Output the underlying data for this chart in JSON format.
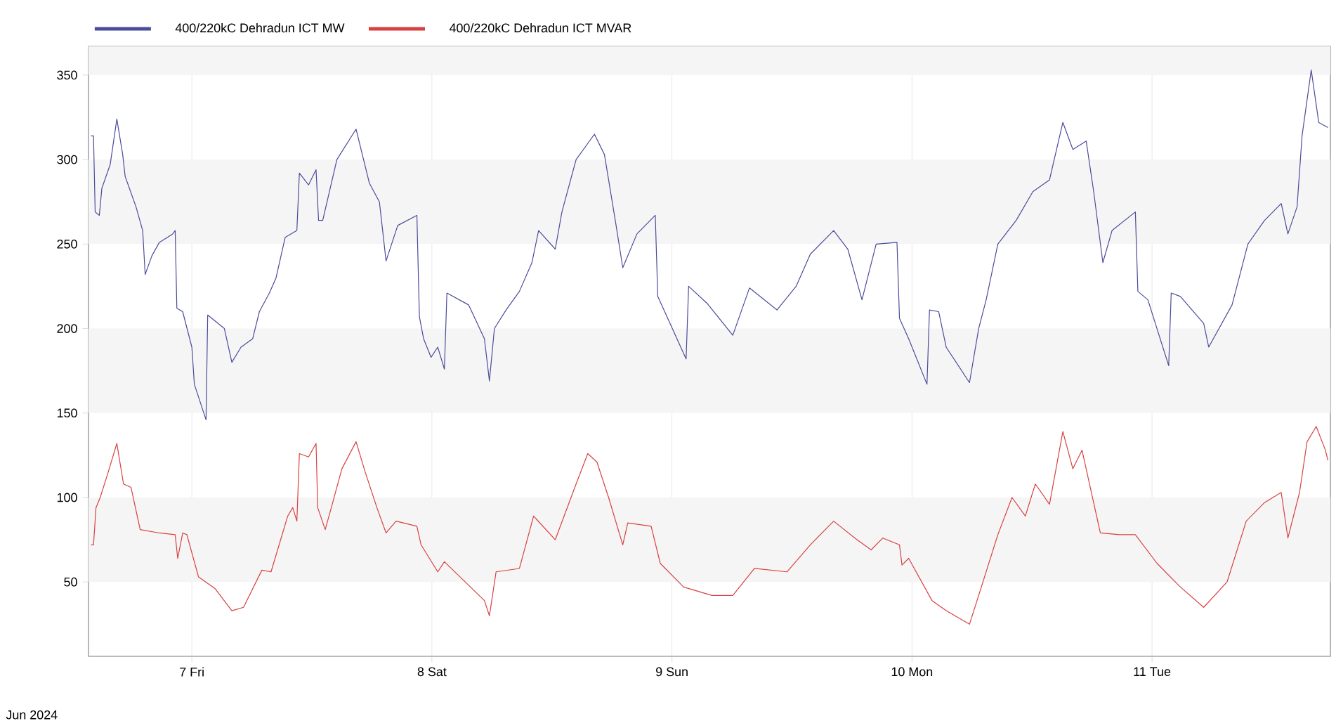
{
  "chart_data": {
    "type": "line",
    "xlim": [
      "2024-06-06T13:40",
      "2024-06-11T17:50"
    ],
    "xticks": [
      {
        "value": "2024-06-07",
        "label": "7 Fri"
      },
      {
        "value": "2024-06-08",
        "label": "8 Sat"
      },
      {
        "value": "2024-06-09",
        "label": "9 Sun"
      },
      {
        "value": "2024-06-10",
        "label": "10 Mon"
      },
      {
        "value": "2024-06-11",
        "label": "11 Tue"
      }
    ],
    "ylim": [
      6,
      367
    ],
    "yticks": [
      50,
      100,
      150,
      200,
      250,
      300,
      350
    ],
    "grid": true,
    "legend": "top",
    "marker": "none",
    "line_style": "solid",
    "annotations": [
      "Jun 2024"
    ],
    "series": [
      {
        "name": "400/220kC Dehradun ICT MW",
        "color": "#4b4b9b",
        "x": [
          "2024-06-06T13:55",
          "2024-06-06T14:10",
          "2024-06-06T14:20",
          "2024-06-06T14:45",
          "2024-06-06T15:00",
          "2024-06-06T15:50",
          "2024-06-06T16:30",
          "2024-06-06T17:05",
          "2024-06-06T17:20",
          "2024-06-06T18:25",
          "2024-06-06T19:05",
          "2024-06-06T19:20",
          "2024-06-06T20:00",
          "2024-06-06T20:45",
          "2024-06-06T22:05",
          "2024-06-06T22:20",
          "2024-06-06T22:30",
          "2024-06-06T23:05",
          "2024-06-07T00:00",
          "2024-06-07T00:15",
          "2024-06-07T01:25",
          "2024-06-07T01:35",
          "2024-06-07T03:15",
          "2024-06-07T04:00",
          "2024-06-07T04:55",
          "2024-06-07T06:05",
          "2024-06-07T06:45",
          "2024-06-07T07:45",
          "2024-06-07T08:25",
          "2024-06-07T09:20",
          "2024-06-07T10:30",
          "2024-06-07T10:45",
          "2024-06-07T11:40",
          "2024-06-07T12:25",
          "2024-06-07T12:40",
          "2024-06-07T13:05",
          "2024-06-07T14:30",
          "2024-06-07T16:25",
          "2024-06-07T17:45",
          "2024-06-07T18:45",
          "2024-06-07T19:25",
          "2024-06-07T20:35",
          "2024-06-07T22:30",
          "2024-06-07T22:45",
          "2024-06-07T23:10",
          "2024-06-07T23:55",
          "2024-06-08T00:35",
          "2024-06-08T01:15",
          "2024-06-08T01:30",
          "2024-06-08T03:40",
          "2024-06-08T05:15",
          "2024-06-08T05:45",
          "2024-06-08T06:15",
          "2024-06-08T07:25",
          "2024-06-08T08:45",
          "2024-06-08T10:00",
          "2024-06-08T10:40",
          "2024-06-08T12:20",
          "2024-06-08T13:00",
          "2024-06-08T14:25",
          "2024-06-08T16:15",
          "2024-06-08T17:15",
          "2024-06-08T18:25",
          "2024-06-08T19:05",
          "2024-06-08T20:30",
          "2024-06-08T22:20",
          "2024-06-08T22:35",
          "2024-06-09T01:25",
          "2024-06-09T01:40",
          "2024-06-09T03:30",
          "2024-06-09T06:05",
          "2024-06-09T07:45",
          "2024-06-09T10:30",
          "2024-06-09T12:25",
          "2024-06-09T13:50",
          "2024-06-09T16:10",
          "2024-06-09T17:35",
          "2024-06-09T19:00",
          "2024-06-09T20:25",
          "2024-06-09T22:30",
          "2024-06-09T22:45",
          "2024-06-09T23:40",
          "2024-06-10T01:30",
          "2024-06-10T01:45",
          "2024-06-10T02:40",
          "2024-06-10T03:25",
          "2024-06-10T05:45",
          "2024-06-10T06:40",
          "2024-06-10T07:25",
          "2024-06-10T08:35",
          "2024-06-10T10:25",
          "2024-06-10T12:05",
          "2024-06-10T13:45",
          "2024-06-10T15:05",
          "2024-06-10T16:05",
          "2024-06-10T17:25",
          "2024-06-10T18:10",
          "2024-06-10T19:05",
          "2024-06-10T20:00",
          "2024-06-10T22:20",
          "2024-06-10T22:35",
          "2024-06-10T23:35",
          "2024-06-11T01:40",
          "2024-06-11T01:55",
          "2024-06-11T02:50",
          "2024-06-11T05:10",
          "2024-06-11T05:40",
          "2024-06-11T08:00",
          "2024-06-11T09:35",
          "2024-06-11T11:15",
          "2024-06-11T12:55",
          "2024-06-11T13:35",
          "2024-06-11T14:30",
          "2024-06-11T15:00",
          "2024-06-11T15:55",
          "2024-06-11T16:40",
          "2024-06-11T17:35"
        ],
        "values": [
          314,
          314,
          269,
          267,
          283,
          297,
          324,
          303,
          290,
          272,
          258,
          232,
          243,
          251,
          256,
          258,
          212,
          210,
          189,
          167,
          146,
          208,
          200,
          180,
          189,
          194,
          210,
          221,
          230,
          254,
          258,
          292,
          285,
          294,
          264,
          264,
          300,
          318,
          286,
          275,
          240,
          261,
          267,
          207,
          194,
          183,
          189,
          176,
          221,
          214,
          194,
          169,
          200,
          211,
          222,
          239,
          258,
          247,
          269,
          300,
          315,
          303,
          261,
          236,
          256,
          267,
          219,
          182,
          225,
          215,
          196,
          224,
          211,
          225,
          244,
          258,
          247,
          217,
          250,
          251,
          206,
          194,
          167,
          211,
          210,
          189,
          168,
          200,
          217,
          250,
          264,
          281,
          288,
          322,
          306,
          311,
          281,
          239,
          258,
          269,
          222,
          217,
          178,
          221,
          219,
          203,
          189,
          214,
          250,
          264,
          274,
          256,
          272,
          314,
          353,
          322,
          319
        ]
      },
      {
        "name": "400/220kC Dehradun ICT MVAR",
        "color": "#d94040",
        "x": [
          "2024-06-06T13:55",
          "2024-06-06T14:10",
          "2024-06-06T14:25",
          "2024-06-06T14:50",
          "2024-06-06T15:35",
          "2024-06-06T16:30",
          "2024-06-06T17:10",
          "2024-06-06T17:55",
          "2024-06-06T18:50",
          "2024-06-06T20:45",
          "2024-06-06T22:20",
          "2024-06-06T22:35",
          "2024-06-06T23:05",
          "2024-06-06T23:30",
          "2024-06-07T00:40",
          "2024-06-07T02:20",
          "2024-06-07T04:00",
          "2024-06-07T05:10",
          "2024-06-07T07:00",
          "2024-06-07T07:55",
          "2024-06-07T09:35",
          "2024-06-07T10:05",
          "2024-06-07T10:30",
          "2024-06-07T10:45",
          "2024-06-07T11:40",
          "2024-06-07T12:25",
          "2024-06-07T12:35",
          "2024-06-07T13:20",
          "2024-06-07T14:05",
          "2024-06-07T15:00",
          "2024-06-07T16:25",
          "2024-06-07T17:20",
          "2024-06-07T18:30",
          "2024-06-07T19:25",
          "2024-06-07T20:25",
          "2024-06-07T22:30",
          "2024-06-07T22:55",
          "2024-06-08T00:35",
          "2024-06-08T01:15",
          "2024-06-08T05:15",
          "2024-06-08T05:45",
          "2024-06-08T06:25",
          "2024-06-08T08:45",
          "2024-06-08T10:10",
          "2024-06-08T12:20",
          "2024-06-08T14:25",
          "2024-06-08T15:35",
          "2024-06-08T16:30",
          "2024-06-08T17:40",
          "2024-06-08T19:05",
          "2024-06-08T19:35",
          "2024-06-08T21:55",
          "2024-06-08T22:50",
          "2024-06-09T01:10",
          "2024-06-09T04:00",
          "2024-06-09T06:05",
          "2024-06-09T08:15",
          "2024-06-09T11:30",
          "2024-06-09T13:50",
          "2024-06-09T16:10",
          "2024-06-09T18:30",
          "2024-06-09T19:55",
          "2024-06-09T21:05",
          "2024-06-09T22:45",
          "2024-06-09T23:00",
          "2024-06-09T23:40",
          "2024-06-10T02:00",
          "2024-06-10T03:25",
          "2024-06-10T05:45",
          "2024-06-10T06:40",
          "2024-06-10T08:35",
          "2024-06-10T10:00",
          "2024-06-10T11:20",
          "2024-06-10T12:20",
          "2024-06-10T13:45",
          "2024-06-10T15:05",
          "2024-06-10T16:05",
          "2024-06-10T17:00",
          "2024-06-10T18:50",
          "2024-06-10T20:45",
          "2024-06-10T22:20",
          "2024-06-11T00:30",
          "2024-06-11T02:50",
          "2024-06-11T05:10",
          "2024-06-11T07:30",
          "2024-06-11T09:25",
          "2024-06-11T11:15",
          "2024-06-11T12:55",
          "2024-06-11T13:35",
          "2024-06-11T14:45",
          "2024-06-11T15:30",
          "2024-06-11T16:25",
          "2024-06-11T17:20",
          "2024-06-11T17:35"
        ],
        "values": [
          72,
          72,
          94,
          100,
          114,
          132,
          108,
          106,
          81,
          79,
          78,
          64,
          79,
          78,
          53,
          46,
          33,
          35,
          57,
          56,
          89,
          94,
          86,
          126,
          124,
          132,
          94,
          81,
          97,
          117,
          133,
          115,
          94,
          79,
          86,
          83,
          72,
          56,
          62,
          39,
          30,
          56,
          58,
          89,
          75,
          108,
          126,
          121,
          100,
          72,
          85,
          83,
          61,
          47,
          42,
          42,
          58,
          56,
          72,
          86,
          75,
          69,
          76,
          72,
          60,
          64,
          39,
          33,
          25,
          42,
          78,
          100,
          89,
          108,
          96,
          139,
          117,
          128,
          79,
          78,
          78,
          61,
          47,
          35,
          50,
          86,
          97,
          103,
          76,
          103,
          133,
          142,
          128,
          122
        ]
      }
    ]
  }
}
